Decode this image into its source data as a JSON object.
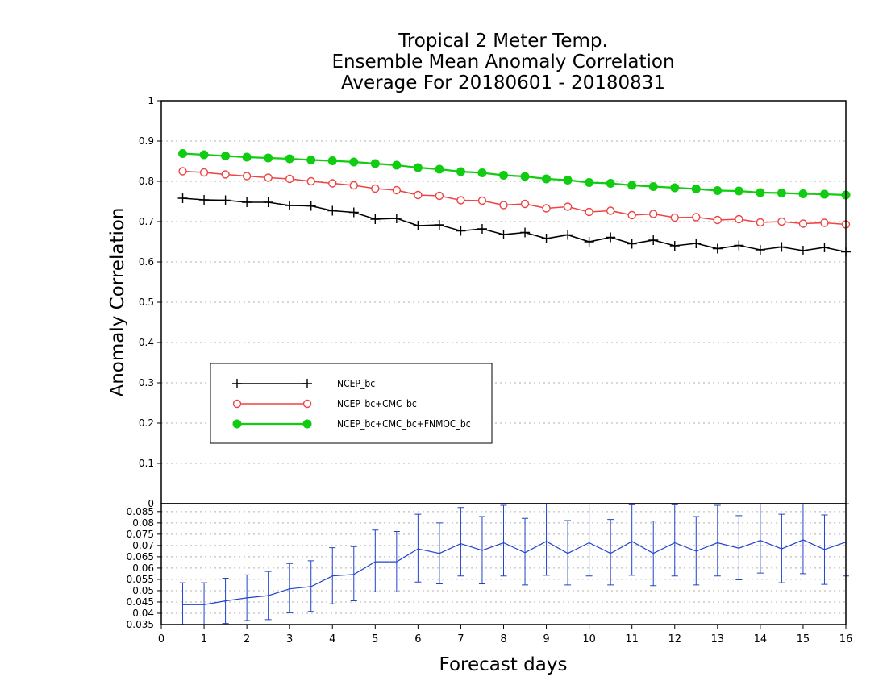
{
  "chart_data": [
    {
      "type": "line",
      "title": [
        "Tropical 2 Meter Temp.",
        "Ensemble Mean Anomaly Correlation",
        "Average For 20180601 - 20180831"
      ],
      "ylabel": "Anomaly Correlation",
      "ylim": [
        0,
        1
      ],
      "yticks": [
        "0",
        "0.1",
        "0.2",
        "0.3",
        "0.4",
        "0.5",
        "0.6",
        "0.7",
        "0.8",
        "0.9",
        "1"
      ],
      "xlim": [
        0,
        16
      ],
      "grid": true,
      "legend_position": "center-left",
      "x": [
        0.5,
        1,
        1.5,
        2,
        2.5,
        3,
        3.5,
        4,
        4.5,
        5,
        5.5,
        6,
        6.5,
        7,
        7.5,
        8,
        8.5,
        9,
        9.5,
        10,
        10.5,
        11,
        11.5,
        12,
        12.5,
        13,
        13.5,
        14,
        14.5,
        15,
        15.5,
        16
      ],
      "series": [
        {
          "name": "NCEP_bc",
          "color": "#000000",
          "marker": "plus",
          "values": [
            0.758,
            0.754,
            0.753,
            0.748,
            0.748,
            0.74,
            0.739,
            0.727,
            0.723,
            0.706,
            0.708,
            0.69,
            0.692,
            0.677,
            0.682,
            0.668,
            0.673,
            0.658,
            0.667,
            0.65,
            0.661,
            0.645,
            0.654,
            0.64,
            0.646,
            0.633,
            0.641,
            0.63,
            0.637,
            0.628,
            0.636,
            0.625
          ]
        },
        {
          "name": "NCEP_bc+CMC_bc",
          "color": "#ee4444",
          "marker": "open-circle",
          "values": [
            0.825,
            0.822,
            0.817,
            0.813,
            0.809,
            0.806,
            0.8,
            0.795,
            0.79,
            0.782,
            0.778,
            0.766,
            0.764,
            0.753,
            0.752,
            0.741,
            0.744,
            0.733,
            0.737,
            0.724,
            0.727,
            0.716,
            0.719,
            0.71,
            0.711,
            0.704,
            0.706,
            0.698,
            0.7,
            0.695,
            0.697,
            0.693
          ]
        },
        {
          "name": "NCEP_bc+CMC_bc+FNMOC_bc",
          "color": "#11cc11",
          "marker": "filled-circle",
          "values": [
            0.869,
            0.866,
            0.863,
            0.86,
            0.858,
            0.856,
            0.853,
            0.851,
            0.848,
            0.844,
            0.84,
            0.834,
            0.83,
            0.824,
            0.821,
            0.815,
            0.812,
            0.806,
            0.803,
            0.797,
            0.795,
            0.79,
            0.787,
            0.784,
            0.781,
            0.777,
            0.776,
            0.772,
            0.771,
            0.769,
            0.768,
            0.766
          ]
        }
      ]
    },
    {
      "type": "line",
      "xlabel": "Forecast days",
      "xticks": [
        "0",
        "1",
        "2",
        "3",
        "4",
        "5",
        "6",
        "7",
        "8",
        "9",
        "10",
        "11",
        "12",
        "13",
        "14",
        "15",
        "16"
      ],
      "xlim": [
        0,
        16
      ],
      "ylim": [
        0.035,
        0.0885
      ],
      "yticks": [
        "0.035",
        "0.04",
        "0.045",
        "0.05",
        "0.055",
        "0.06",
        "0.065",
        "0.07",
        "0.075",
        "0.08",
        "0.085"
      ],
      "top_label": "0",
      "grid": true,
      "error_bars": true,
      "x": [
        0.5,
        1,
        1.5,
        2,
        2.5,
        3,
        3.5,
        4,
        4.5,
        5,
        5.5,
        6,
        6.5,
        7,
        7.5,
        8,
        8.5,
        9,
        9.5,
        10,
        10.5,
        11,
        11.5,
        12,
        12.5,
        13,
        13.5,
        14,
        14.5,
        15,
        15.5,
        16
      ],
      "series": [
        {
          "color": "#2244cc",
          "values": [
            0.0438,
            0.0438,
            0.0455,
            0.0468,
            0.0478,
            0.0508,
            0.0518,
            0.0565,
            0.0572,
            0.0628,
            0.0628,
            0.0685,
            0.0665,
            0.0708,
            0.0678,
            0.0712,
            0.0668,
            0.0718,
            0.0665,
            0.0712,
            0.0665,
            0.0718,
            0.0665,
            0.0712,
            0.0675,
            0.0712,
            0.0688,
            0.0722,
            0.0685,
            0.0725,
            0.0682,
            0.0715
          ],
          "upper": [
            0.0535,
            0.0535,
            0.0555,
            0.057,
            0.0585,
            0.062,
            0.0632,
            0.069,
            0.0695,
            0.0768,
            0.0762,
            0.0838,
            0.08,
            0.0868,
            0.0828,
            0.0878,
            0.082,
            0.0885,
            0.081,
            0.0885,
            0.0815,
            0.088,
            0.0808,
            0.088,
            0.0828,
            0.0878,
            0.0832,
            0.0885,
            0.0838,
            0.0885,
            0.0835,
            0.0885
          ],
          "lower": [
            0.0342,
            0.0342,
            0.0355,
            0.0368,
            0.0372,
            0.0402,
            0.0408,
            0.0442,
            0.0455,
            0.0495,
            0.0495,
            0.0538,
            0.053,
            0.0565,
            0.053,
            0.0565,
            0.0525,
            0.0568,
            0.0525,
            0.0565,
            0.0525,
            0.0568,
            0.0522,
            0.0565,
            0.0525,
            0.0565,
            0.0548,
            0.0578,
            0.0535,
            0.0575,
            0.0528,
            0.0565
          ]
        }
      ]
    }
  ]
}
